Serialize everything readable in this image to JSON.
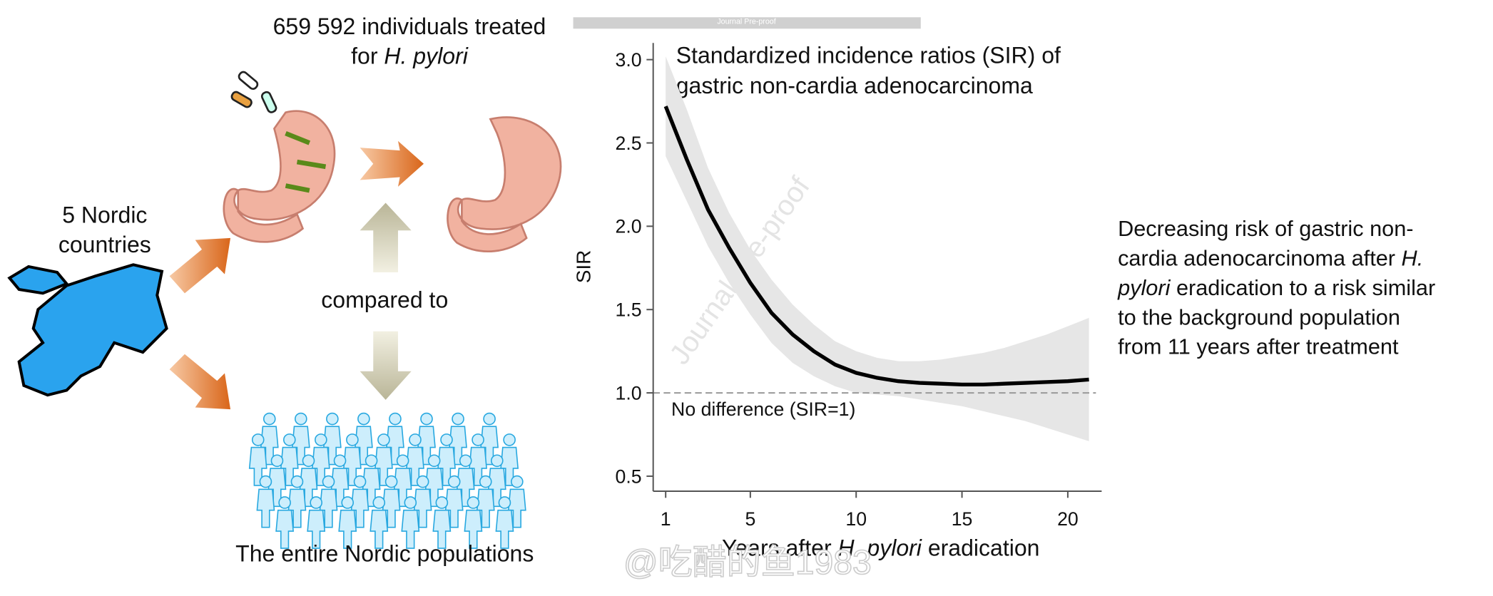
{
  "top_caption": {
    "lines": [
      [
        {
          "text": "659 592 individuals treated"
        }
      ],
      [
        {
          "text": "for "
        },
        {
          "text": "H. pylori",
          "italic": true
        }
      ]
    ]
  },
  "countries_label": {
    "lines": [
      [
        {
          "text": "5 Nordic"
        }
      ],
      [
        {
          "text": "countries"
        }
      ]
    ]
  },
  "compared_label": {
    "lines": [
      [
        {
          "text": "compared to"
        }
      ]
    ]
  },
  "population_label": {
    "lines": [
      [
        {
          "text": "The entire Nordic populations"
        }
      ]
    ]
  },
  "conclusion": {
    "lines": [
      [
        {
          "text": "Decreasing risk of gastric non-"
        }
      ],
      [
        {
          "text": "cardia adenocarcinoma after "
        },
        {
          "text": "H.",
          "italic": true
        }
      ],
      [
        {
          "text": "pylori",
          "italic": true
        },
        {
          "text": " eradication to a risk similar"
        }
      ],
      [
        {
          "text": "to the background population"
        }
      ],
      [
        {
          "text": "from 11 years after treatment"
        }
      ]
    ]
  },
  "watermarks": {
    "journal": "Journal Pre-proof",
    "diagonal": "Journal Pre-proof",
    "weibo": "@吃醋的鱼1983"
  },
  "chart_data": {
    "type": "line",
    "title": {
      "lines": [
        [
          {
            "text": "Standardized incidence ratios (SIR) of"
          }
        ],
        [
          {
            "text": "gastric non-cardia adenocarcinoma"
          }
        ]
      ]
    },
    "ylabel": "SIR",
    "xlabel": {
      "lines": [
        [
          {
            "text": "Years after "
          },
          {
            "text": "H. pylori",
            "italic": true
          },
          {
            "text": " eradication"
          }
        ]
      ]
    },
    "x": [
      1,
      2,
      3,
      4,
      5,
      6,
      7,
      8,
      9,
      10,
      11,
      12,
      13,
      14,
      15,
      16,
      17,
      18,
      19,
      20,
      21
    ],
    "values": [
      2.72,
      2.4,
      2.1,
      1.87,
      1.66,
      1.48,
      1.35,
      1.25,
      1.17,
      1.12,
      1.09,
      1.07,
      1.06,
      1.055,
      1.05,
      1.05,
      1.055,
      1.06,
      1.065,
      1.07,
      1.08
    ],
    "ci_lower": [
      2.42,
      2.15,
      1.88,
      1.66,
      1.47,
      1.3,
      1.18,
      1.1,
      1.04,
      1.0,
      0.99,
      0.98,
      0.96,
      0.94,
      0.92,
      0.89,
      0.86,
      0.83,
      0.79,
      0.75,
      0.71
    ],
    "ci_upper": [
      3.02,
      2.7,
      2.35,
      2.08,
      1.86,
      1.68,
      1.53,
      1.41,
      1.31,
      1.25,
      1.21,
      1.19,
      1.19,
      1.2,
      1.22,
      1.24,
      1.27,
      1.31,
      1.35,
      1.4,
      1.45
    ],
    "color": "#000000",
    "band_color": "#e6e6e6",
    "reference_line": {
      "value": 1,
      "label": "No difference (SIR=1)",
      "color": "#999999"
    },
    "xlim": [
      0.41,
      21.6
    ],
    "ylim": [
      0.41,
      3.1
    ],
    "xticks": [
      1,
      5,
      10,
      15,
      20
    ],
    "yticks": [
      0.5,
      {
        "value": 1,
        "label": "1.0"
      },
      1.5,
      {
        "value": 2,
        "label": "2.0"
      },
      2.5,
      {
        "value": 3,
        "label": "3.0"
      }
    ]
  }
}
